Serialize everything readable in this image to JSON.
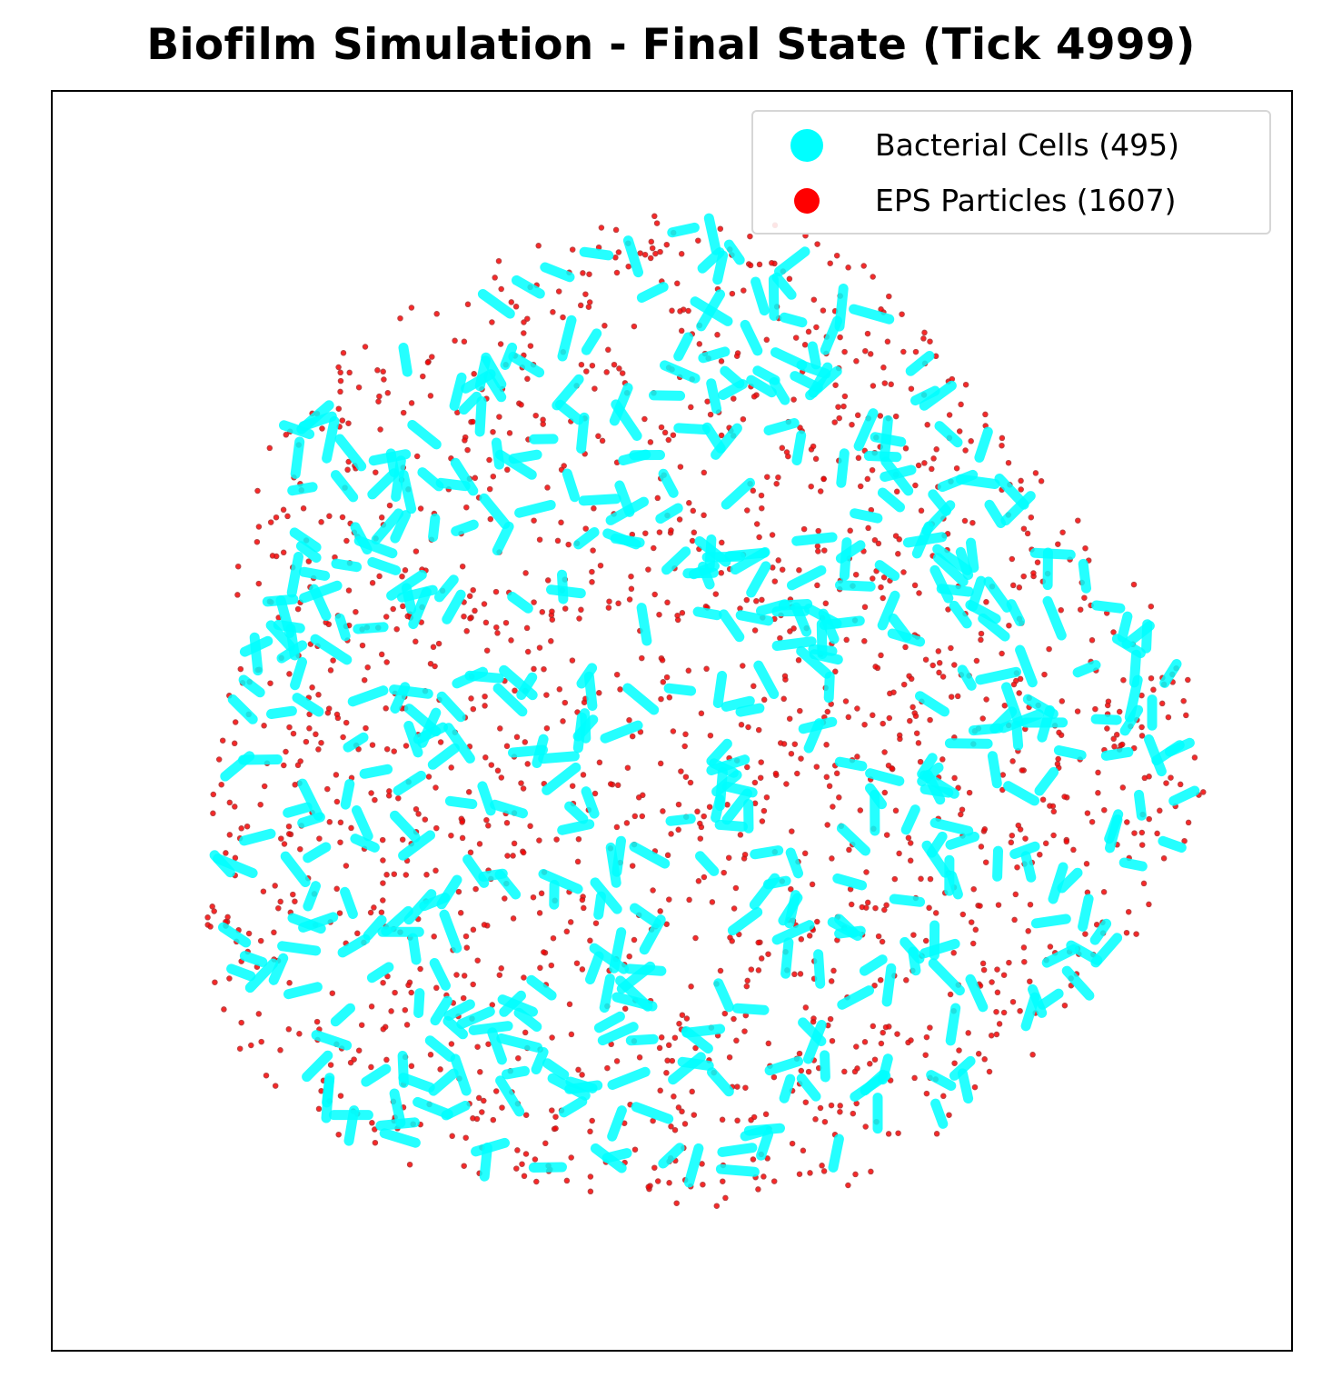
{
  "title": "Biofilm Simulation - Final State (Tick 4999)",
  "chart_data": {
    "type": "scatter",
    "title": "Biofilm Simulation - Final State (Tick 4999)",
    "xlabel": "",
    "ylabel": "",
    "axes_ticks": "hidden",
    "grid": false,
    "legend_placement": "top-right",
    "series": [
      {
        "name": "Bacterial Cells (495)",
        "kind": "rod-shaped cells",
        "color": "#00ffff",
        "count": 495
      },
      {
        "name": "EPS Particles (1607)",
        "kind": "point particles",
        "color": "#ff0000",
        "edge_color": "#b22222",
        "count": 1607
      }
    ],
    "colony_shape": "roughly circular cluster centered in the frame, EPS particles interspersed among rod-shaped cells"
  },
  "legend": {
    "items": [
      {
        "label": "Bacterial Cells (495)",
        "color": "#00ffff"
      },
      {
        "label": "EPS Particles (1607)",
        "color": "#ff0000"
      }
    ]
  }
}
